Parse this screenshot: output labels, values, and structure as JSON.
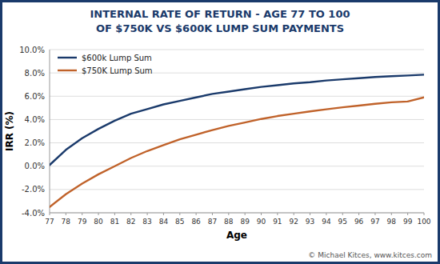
{
  "chart_data": {
    "type": "line",
    "title": "INTERNAL RATE OF RETURN - AGE 77 TO 100",
    "subtitle": "OF $750K VS $600K LUMP SUM PAYMENTS",
    "x_label": "Age",
    "y_label": "IRR (%)",
    "x": [
      77,
      78,
      79,
      80,
      81,
      82,
      83,
      84,
      85,
      86,
      87,
      88,
      89,
      90,
      91,
      92,
      93,
      94,
      95,
      96,
      97,
      98,
      99,
      100
    ],
    "series": [
      {
        "name": "$600k Lump Sum",
        "color": "#1a3a6b",
        "values": [
          0.1,
          1.4,
          2.4,
          3.2,
          3.9,
          4.5,
          4.9,
          5.3,
          5.6,
          5.9,
          6.2,
          6.4,
          6.6,
          6.8,
          6.95,
          7.1,
          7.2,
          7.35,
          7.45,
          7.55,
          7.65,
          7.72,
          7.78,
          7.85
        ]
      },
      {
        "name": "$750K Lump Sum",
        "color": "#c0622a",
        "values": [
          -3.5,
          -2.4,
          -1.5,
          -0.7,
          0.0,
          0.7,
          1.3,
          1.8,
          2.3,
          2.7,
          3.1,
          3.45,
          3.75,
          4.05,
          4.3,
          4.5,
          4.7,
          4.88,
          5.05,
          5.2,
          5.35,
          5.48,
          5.55,
          5.9
        ]
      }
    ],
    "xlim": [
      77,
      100
    ],
    "xticks": [
      77,
      78,
      79,
      80,
      81,
      82,
      83,
      84,
      85,
      86,
      87,
      88,
      89,
      90,
      91,
      92,
      93,
      94,
      95,
      96,
      97,
      98,
      99,
      100
    ],
    "ylim": [
      -4.0,
      10.0
    ],
    "yticks": [
      {
        "value": -4.0,
        "label": "-4.0%"
      },
      {
        "value": -2.0,
        "label": "-2.0%"
      },
      {
        "value": 0.0,
        "label": "0.0%"
      },
      {
        "value": 2.0,
        "label": "2.0%"
      },
      {
        "value": 4.0,
        "label": "4.0%"
      },
      {
        "value": 6.0,
        "label": "6.0%"
      },
      {
        "value": 8.0,
        "label": "8.0%"
      },
      {
        "value": 10.0,
        "label": "10.0%"
      }
    ],
    "grid": true,
    "legend": "upper left",
    "annotations": [
      "© Michael Kitces, www.kitces.com"
    ]
  }
}
